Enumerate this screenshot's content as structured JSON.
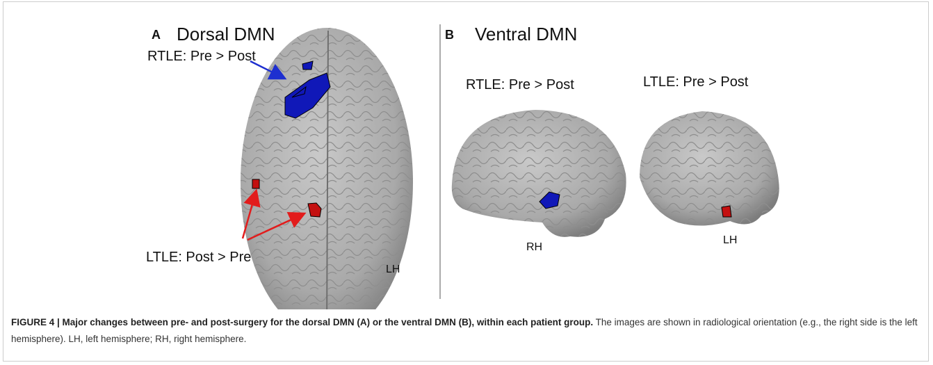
{
  "panels": [
    {
      "letter": "A",
      "title": "Dorsal DMN",
      "top_label": "RTLE: Pre > Post",
      "bottom_label": "LTLE: Post > Pre",
      "side": "LH"
    },
    {
      "letter": "B",
      "title": "Ventral DMN",
      "views": [
        {
          "label": "RTLE: Pre > Post",
          "side": "RH"
        },
        {
          "label": "LTLE: Pre > Post",
          "side": "LH"
        }
      ]
    }
  ],
  "caption": {
    "bold": "FIGURE 4 | Major changes between pre- and post-surgery for the dorsal DMN (A) or the ventral DMN (B), within each patient group.",
    "text": "The images are shown in radiological orientation (e.g., the right side is the left hemisphere). LH, left hemisphere; RH, right hemisphere."
  }
}
